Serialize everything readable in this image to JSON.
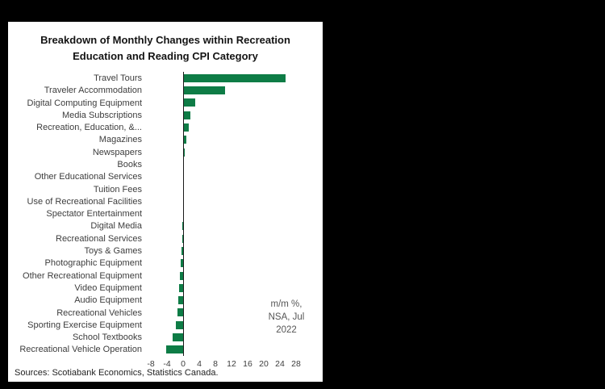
{
  "window": {
    "background_color": "#000000",
    "panel_color": "#ffffff"
  },
  "chart_data": {
    "type": "bar",
    "orientation": "horizontal",
    "title": "Breakdown of Monthly Changes within Recreation Education and Reading CPI Category",
    "title_lines": [
      "Breakdown of Monthly Changes within Recreation",
      "Education and Reading CPI Category"
    ],
    "categories": [
      "Travel Tours",
      "Traveler Accommodation",
      "Digital Computing Equipment",
      "Media Subscriptions",
      "Recreation, Education, &...",
      "Magazines",
      "Newspapers",
      "Books",
      "Other Educational Services",
      "Tuition Fees",
      "Use of Recreational Facilities",
      "Spectator Entertainment",
      "Digital Media",
      "Recreational Services",
      "Toys & Games",
      "Photographic Equipment",
      "Other Recreational Equipment",
      "Video Equipment",
      "Audio Equipment",
      "Recreational Vehicles",
      "Sporting Exercise Equipment",
      "School Textbooks",
      "Recreational Vehicle Operation"
    ],
    "values": [
      25.4,
      10.3,
      2.9,
      1.7,
      1.3,
      0.8,
      0.3,
      0.1,
      0,
      0,
      0,
      -0.1,
      -0.2,
      -0.3,
      -0.5,
      -0.7,
      -0.9,
      -1.0,
      -1.2,
      -1.4,
      -1.8,
      -2.6,
      -4.2
    ],
    "xlim": [
      -9,
      29
    ],
    "xticks": [
      -8,
      -4,
      0,
      4,
      8,
      12,
      16,
      20,
      24,
      28
    ],
    "grid": false,
    "legend": "none",
    "bar_color": "#0e7c46",
    "annotation": "m/m %, NSA, Jul 2022",
    "annotation_lines": [
      "m/m %,",
      "NSA, Jul",
      "2022"
    ]
  },
  "footer": {
    "sources": "Sources: Scotiabank Economics, Statistics Canada."
  }
}
